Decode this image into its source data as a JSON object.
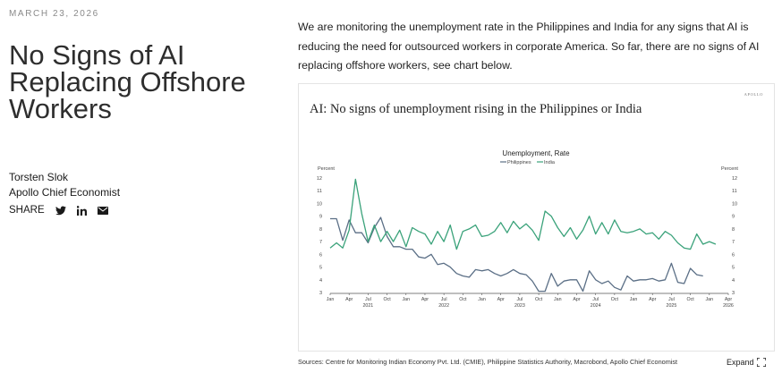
{
  "article": {
    "date": "MARCH 23, 2026",
    "title": "No Signs of AI Replacing Offshore Workers",
    "author_name": "Torsten Slok",
    "author_role": "Apollo Chief Economist",
    "share_label": "SHARE",
    "share_icons": [
      "twitter-icon",
      "linkedin-icon",
      "email-icon"
    ],
    "intro": "We are monitoring the unemployment rate in the Philippines and India for any signs that AI is reducing the need for outsourced workers in corporate America. So far, there are no signs of AI replacing offshore workers, see chart below.",
    "sources": "Sources: Centre for Monitoring Indian Economy Pvt. Ltd. (CMIE), Philippine Statistics Authority, Macrobond, Apollo Chief Economist",
    "expand_label": "Expand",
    "brand": "APOLLO"
  },
  "colors": {
    "philippines": "#5b6f86",
    "india": "#3aa27a",
    "axis": "#555555"
  },
  "chart_data": {
    "type": "line",
    "title": "AI: No signs of unemployment rising in the Philippines or India",
    "legend_title": "Unemployment, Rate",
    "legend_placement": "top-center",
    "ylabel_left": "Percent",
    "ylabel_right": "Percent",
    "ylim": [
      3,
      12
    ],
    "yticks": [
      3,
      4,
      5,
      6,
      7,
      8,
      9,
      10,
      11,
      12
    ],
    "x_start": "2021-01",
    "x_end": "2026-04",
    "month_ticks": [
      "Jan",
      "Apr",
      "Jul",
      "Oct",
      "Jan",
      "Apr",
      "Jul",
      "Oct",
      "Jan",
      "Apr",
      "Jul",
      "Oct",
      "Jan",
      "Apr",
      "Jul",
      "Oct",
      "Jan",
      "Apr",
      "Jul",
      "Oct",
      "Jan",
      "Apr"
    ],
    "year_labels": [
      "2021",
      "2022",
      "2023",
      "2024",
      "2025",
      "2026"
    ],
    "grid": false,
    "series": [
      {
        "name": "Philippines",
        "start": "2021-01",
        "values": [
          8.8,
          8.8,
          7.1,
          8.7,
          7.7,
          7.7,
          6.9,
          8.1,
          8.9,
          7.4,
          6.6,
          6.6,
          6.4,
          6.4,
          5.8,
          5.7,
          6.0,
          5.2,
          5.3,
          5.0,
          4.5,
          4.3,
          4.2,
          4.8,
          4.7,
          4.8,
          4.5,
          4.3,
          4.5,
          4.8,
          4.5,
          4.4,
          3.9,
          3.1,
          3.1,
          4.5,
          3.5,
          3.9,
          4.0,
          4.0,
          3.1,
          4.7,
          4.0,
          3.7,
          3.9,
          3.4,
          3.2,
          4.3,
          3.9,
          4.0,
          4.0,
          4.1,
          3.9,
          4.0,
          5.3,
          3.8,
          3.7,
          4.9,
          4.4,
          4.3
        ]
      },
      {
        "name": "India",
        "start": "2021-01",
        "values": [
          6.5,
          6.9,
          6.5,
          7.9,
          11.9,
          9.2,
          7.0,
          8.3,
          7.0,
          7.8,
          7.0,
          7.9,
          6.6,
          8.1,
          7.8,
          7.6,
          6.8,
          7.8,
          7.0,
          8.3,
          6.4,
          7.8,
          8.0,
          8.3,
          7.4,
          7.5,
          7.8,
          8.5,
          7.7,
          8.6,
          8.0,
          8.4,
          7.9,
          7.1,
          9.4,
          9.0,
          8.1,
          7.4,
          8.1,
          7.2,
          7.9,
          9.0,
          7.6,
          8.5,
          7.6,
          8.7,
          7.8,
          7.7,
          7.8,
          8.0,
          7.6,
          7.7,
          7.2,
          7.8,
          7.5,
          6.9,
          6.5,
          6.4,
          7.6,
          6.8,
          7.0,
          6.8
        ]
      }
    ]
  }
}
